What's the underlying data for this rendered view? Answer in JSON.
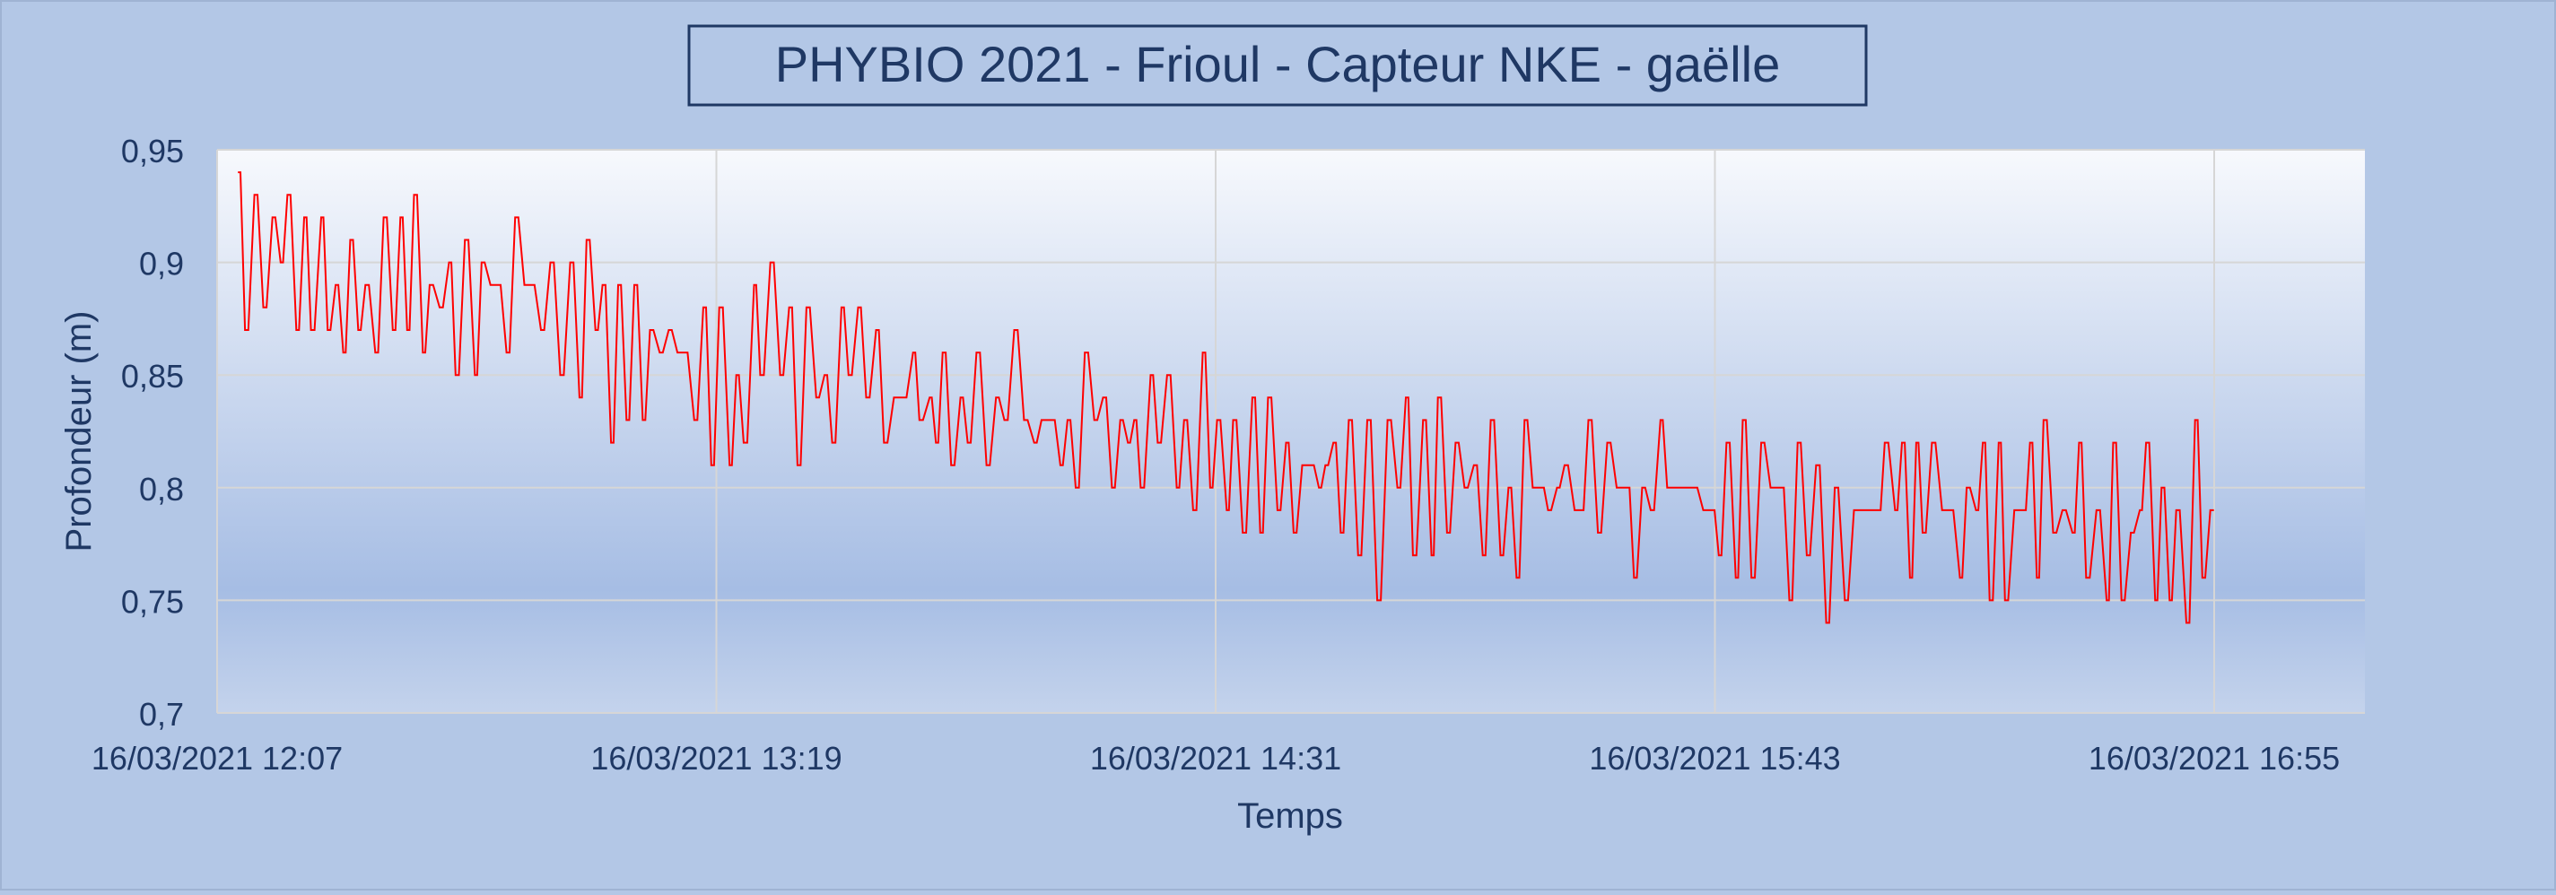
{
  "chart_data": {
    "type": "line",
    "title": "PHYBIO 2021 - Frioul - Capteur NKE - gaëlle",
    "xlabel": "Temps",
    "ylabel": "Profondeur (m)",
    "ylim": [
      0.7,
      0.95
    ],
    "yticks": [
      "0,7",
      "0,75",
      "0,8",
      "0,85",
      "0,9",
      "0,95"
    ],
    "xticks": [
      "16/03/2021 12:07",
      "16/03/2021 13:19",
      "16/03/2021 14:31",
      "16/03/2021 15:43",
      "16/03/2021 16:55"
    ],
    "grid": true,
    "legend": "none",
    "series": [
      {
        "color": "#ff0000",
        "x": [
          "12:12",
          "12:17",
          "12:23",
          "12:29",
          "12:36",
          "12:42",
          "12:48",
          "12:54",
          "13:00",
          "13:06",
          "13:12",
          "13:18",
          "13:24",
          "13:30",
          "13:36",
          "13:42",
          "13:48",
          "13:54",
          "14:00",
          "14:06",
          "14:12",
          "14:18",
          "14:24",
          "14:30",
          "14:36",
          "14:42",
          "14:48",
          "14:54",
          "15:00",
          "15:06",
          "15:12",
          "15:18",
          "15:24",
          "15:30",
          "15:36",
          "15:42",
          "15:48",
          "15:54",
          "16:00",
          "16:06",
          "16:12",
          "16:18",
          "16:24",
          "16:30",
          "16:36",
          "16:42",
          "16:48",
          "16:55"
        ],
        "center": [
          0.905,
          0.9,
          0.892,
          0.89,
          0.888,
          0.882,
          0.885,
          0.876,
          0.87,
          0.868,
          0.865,
          0.858,
          0.855,
          0.85,
          0.845,
          0.843,
          0.84,
          0.838,
          0.836,
          0.832,
          0.832,
          0.83,
          0.828,
          0.828,
          0.822,
          0.815,
          0.81,
          0.807,
          0.805,
          0.803,
          0.802,
          0.8,
          0.798,
          0.796,
          0.795,
          0.795,
          0.8,
          0.798,
          0.795,
          0.79,
          0.79,
          0.792,
          0.79,
          0.788,
          0.788,
          0.79,
          0.79,
          0.79
        ],
        "high": [
          0.94,
          0.93,
          0.92,
          0.91,
          0.93,
          0.91,
          0.93,
          0.92,
          0.91,
          0.9,
          0.9,
          0.89,
          0.91,
          0.89,
          0.88,
          0.88,
          0.87,
          0.86,
          0.87,
          0.89,
          0.87,
          0.87,
          0.86,
          0.86,
          0.85,
          0.84,
          0.83,
          0.84,
          0.85,
          0.84,
          0.84,
          0.83,
          0.83,
          0.83,
          0.83,
          0.83,
          0.84,
          0.82,
          0.82,
          0.82,
          0.82,
          0.84,
          0.82,
          0.83,
          0.83,
          0.83,
          0.85,
          0.82
        ],
        "low": [
          0.86,
          0.87,
          0.86,
          0.86,
          0.86,
          0.84,
          0.85,
          0.84,
          0.83,
          0.82,
          0.82,
          0.81,
          0.81,
          0.8,
          0.81,
          0.81,
          0.81,
          0.81,
          0.8,
          0.79,
          0.8,
          0.79,
          0.79,
          0.79,
          0.78,
          0.77,
          0.77,
          0.75,
          0.76,
          0.77,
          0.75,
          0.76,
          0.77,
          0.76,
          0.76,
          0.76,
          0.75,
          0.75,
          0.74,
          0.74,
          0.75,
          0.75,
          0.75,
          0.74,
          0.73,
          0.74,
          0.73,
          0.76
        ]
      }
    ]
  }
}
